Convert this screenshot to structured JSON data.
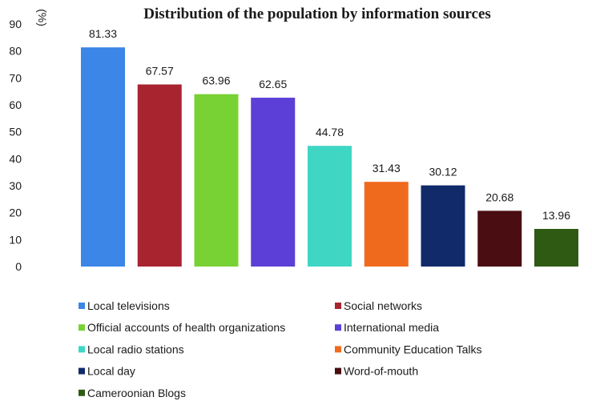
{
  "chart_data": {
    "type": "bar",
    "title": "Distribution of the population by information sources",
    "ylabel": "(%)",
    "xlabel": "",
    "ylim": [
      0,
      90
    ],
    "yticks": [
      0,
      10,
      20,
      30,
      40,
      50,
      60,
      70,
      80,
      90
    ],
    "grid": false,
    "legend_position": "bottom",
    "categories": [
      "Local televisions",
      "Social networks",
      "Official accounts of health organizations",
      "International media",
      "Local radio stations",
      "Community Education Talks",
      "Local day",
      "Word-of-mouth",
      "Cameroonian Blogs"
    ],
    "values": [
      81.33,
      67.57,
      63.96,
      62.65,
      44.78,
      31.43,
      30.12,
      20.68,
      13.96
    ],
    "value_labels": [
      "81.33",
      "67.57",
      "63.96",
      "62.65",
      "44.78",
      "31.43",
      "30.12",
      "20.68",
      "13.96"
    ],
    "colors": [
      "#3b86e6",
      "#a8242f",
      "#78d233",
      "#5c3fd6",
      "#3fd6c4",
      "#f06a1e",
      "#102a6a",
      "#4a0d12",
      "#2e5a14"
    ]
  }
}
